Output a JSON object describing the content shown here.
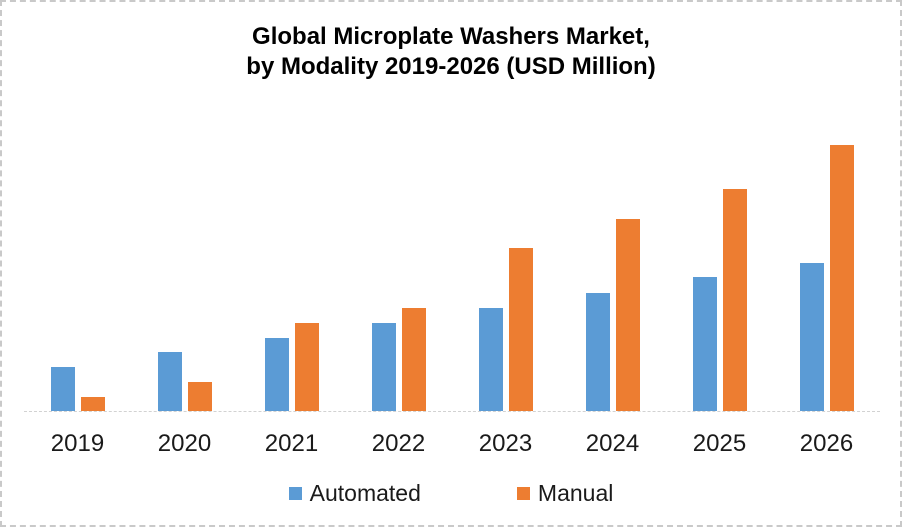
{
  "frame": {
    "background": "#ffffff",
    "border_color": "#c9c9c9",
    "axis_line_color": "#d2d2d2"
  },
  "chart_data": {
    "type": "bar",
    "title": "Global Microplate Washers Market, by Modality 2019-2026 (USD Million)",
    "title_lines": [
      "Global Microplate Washers Market,",
      "by Modality 2019-2026 (USD Million)"
    ],
    "categories": [
      "2019",
      "2020",
      "2021",
      "2022",
      "2023",
      "2024",
      "2025",
      "2026"
    ],
    "series": [
      {
        "name": "Automated",
        "color": "#5B9BD5",
        "values": [
          44,
          59,
          73,
          88,
          103,
          118,
          134,
          148
        ]
      },
      {
        "name": "Manual",
        "color": "#ED7D31",
        "values": [
          14,
          29,
          88,
          103,
          163,
          192,
          222,
          266
        ]
      }
    ],
    "xlabel": "",
    "ylabel": "",
    "ylim": [
      0,
      279
    ],
    "y_axis_visible": false,
    "gridlines": false,
    "legend_position": "bottom-center"
  }
}
